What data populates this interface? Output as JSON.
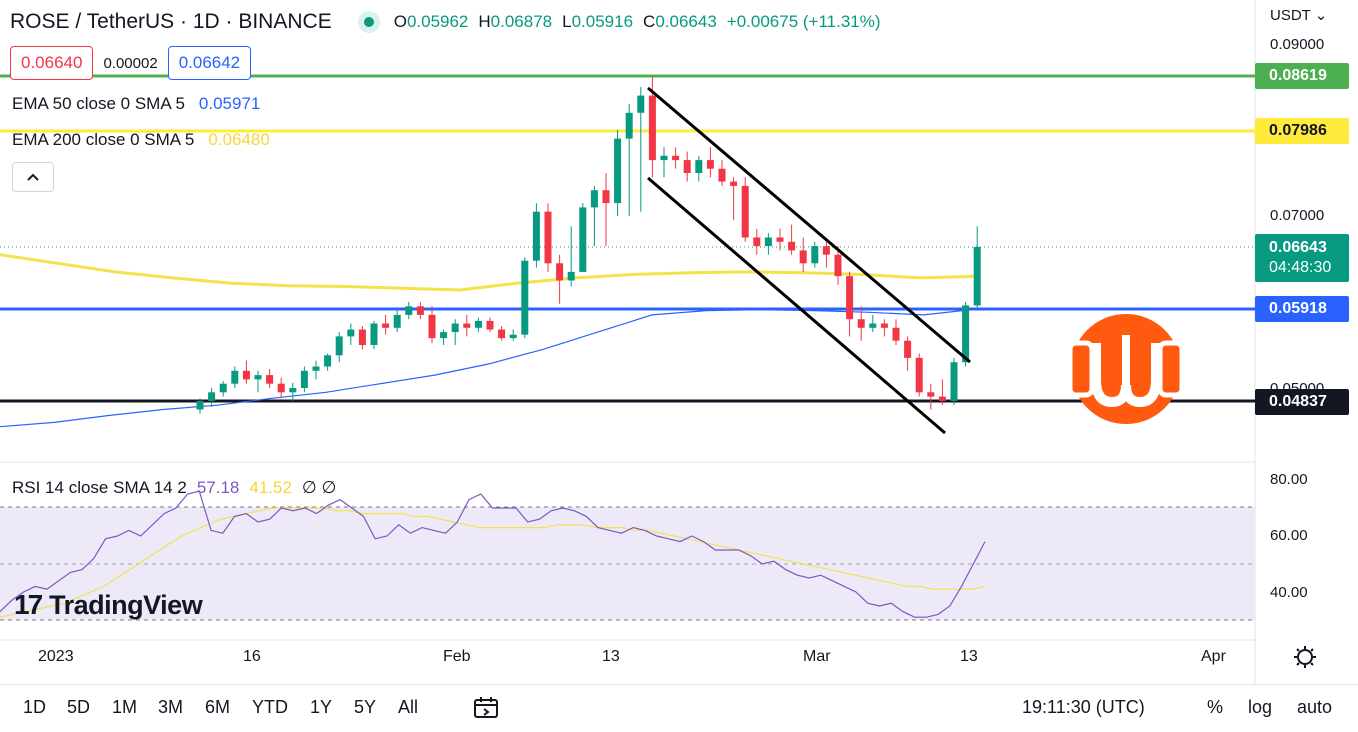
{
  "header": {
    "symbol": "ROSE / TetherUS · 1D · BINANCE",
    "ohlc": [
      {
        "k": "O",
        "v": "0.05962"
      },
      {
        "k": "H",
        "v": "0.06878"
      },
      {
        "k": "L",
        "v": "0.05916"
      },
      {
        "k": "C",
        "v": "0.06643"
      }
    ],
    "change": "+0.00675 (+11.31%)",
    "accent_color": "#089981"
  },
  "quote": {
    "bid": "0.06640",
    "spread": "0.00002",
    "ask": "0.06642"
  },
  "indicators": [
    {
      "label": "EMA 50 close 0 SMA 5",
      "value": "0.05971",
      "color": "#2962ff"
    },
    {
      "label": "EMA 200 close 0 SMA 5",
      "value": "0.06480",
      "color": "#f5d63d"
    }
  ],
  "collapse_icon": "chevron-up-icon",
  "currency": "USDT",
  "price_axis": [
    "0.09000",
    "0.07000",
    "0.05000"
  ],
  "price_tags": [
    {
      "value": "0.08619",
      "bg": "#4caf50",
      "fg": "#ffffff"
    },
    {
      "value": "0.07986",
      "bg": "#ffeb3b",
      "fg": "#131722"
    },
    {
      "value": "0.06643",
      "bg": "#089981",
      "fg": "#ffffff",
      "sub": "04:48:30"
    },
    {
      "value": "0.05918",
      "bg": "#2962ff",
      "fg": "#ffffff"
    },
    {
      "value": "0.04837",
      "bg": "#131722",
      "fg": "#ffffff"
    }
  ],
  "rsi": {
    "label": "RSI 14 close SMA 14 2",
    "value": "57.18",
    "sma_value": "41.52",
    "extra": "∅ ∅",
    "axis": [
      "80.00",
      "60.00",
      "40.00"
    ]
  },
  "logo": {
    "mark": "17",
    "word": "TradingView"
  },
  "dates": [
    "2023",
    "16",
    "Feb",
    "13",
    "Mar",
    "13",
    "Apr"
  ],
  "toolbar": {
    "timeframes": [
      "1D",
      "5D",
      "1M",
      "3M",
      "6M",
      "YTD",
      "1Y",
      "5Y",
      "All"
    ],
    "time": "19:11:30 (UTC)",
    "percent": "%",
    "log": "log",
    "auto": "auto"
  },
  "chart_data": {
    "type": "candlestick",
    "candles": [
      [
        0.0475,
        0.0488,
        0.047,
        0.0485
      ],
      [
        0.0485,
        0.05,
        0.0478,
        0.0495
      ],
      [
        0.0495,
        0.0508,
        0.049,
        0.0505
      ],
      [
        0.0505,
        0.0525,
        0.05,
        0.052
      ],
      [
        0.052,
        0.0532,
        0.0505,
        0.051
      ],
      [
        0.051,
        0.052,
        0.0495,
        0.0515
      ],
      [
        0.0515,
        0.0522,
        0.05,
        0.0505
      ],
      [
        0.0505,
        0.0512,
        0.0488,
        0.0495
      ],
      [
        0.0495,
        0.0506,
        0.0485,
        0.05
      ],
      [
        0.05,
        0.0525,
        0.0495,
        0.052
      ],
      [
        0.052,
        0.0532,
        0.051,
        0.0525
      ],
      [
        0.0525,
        0.054,
        0.052,
        0.0538
      ],
      [
        0.0538,
        0.0565,
        0.053,
        0.056
      ],
      [
        0.056,
        0.0575,
        0.055,
        0.0568
      ],
      [
        0.0568,
        0.0572,
        0.0545,
        0.055
      ],
      [
        0.055,
        0.0578,
        0.0545,
        0.0575
      ],
      [
        0.0575,
        0.0585,
        0.0562,
        0.057
      ],
      [
        0.057,
        0.059,
        0.0565,
        0.0585
      ],
      [
        0.0585,
        0.06,
        0.058,
        0.0595
      ],
      [
        0.0595,
        0.06,
        0.058,
        0.0585
      ],
      [
        0.0585,
        0.0595,
        0.0552,
        0.0558
      ],
      [
        0.0558,
        0.0568,
        0.055,
        0.0565
      ],
      [
        0.0565,
        0.058,
        0.055,
        0.0575
      ],
      [
        0.0575,
        0.0585,
        0.056,
        0.057
      ],
      [
        0.057,
        0.0582,
        0.0565,
        0.0578
      ],
      [
        0.0578,
        0.0582,
        0.0565,
        0.0568
      ],
      [
        0.0568,
        0.0572,
        0.0555,
        0.0558
      ],
      [
        0.0558,
        0.0568,
        0.0555,
        0.0562
      ],
      [
        0.0562,
        0.0652,
        0.0558,
        0.0648
      ],
      [
        0.0648,
        0.0715,
        0.064,
        0.0705
      ],
      [
        0.0705,
        0.0715,
        0.0635,
        0.0645
      ],
      [
        0.0645,
        0.0655,
        0.0598,
        0.0625
      ],
      [
        0.0625,
        0.0688,
        0.0618,
        0.0635
      ],
      [
        0.0635,
        0.0715,
        0.0635,
        0.071
      ],
      [
        0.071,
        0.0735,
        0.0665,
        0.073
      ],
      [
        0.073,
        0.075,
        0.0665,
        0.0715
      ],
      [
        0.0715,
        0.08,
        0.07,
        0.079
      ],
      [
        0.079,
        0.083,
        0.07,
        0.082
      ],
      [
        0.082,
        0.085,
        0.0705,
        0.084
      ],
      [
        0.084,
        0.0862,
        0.0745,
        0.0765
      ],
      [
        0.0765,
        0.078,
        0.0745,
        0.077
      ],
      [
        0.077,
        0.078,
        0.0755,
        0.0765
      ],
      [
        0.0765,
        0.0775,
        0.074,
        0.075
      ],
      [
        0.075,
        0.077,
        0.074,
        0.0765
      ],
      [
        0.0765,
        0.078,
        0.0745,
        0.0755
      ],
      [
        0.0755,
        0.0765,
        0.0735,
        0.074
      ],
      [
        0.074,
        0.0745,
        0.0695,
        0.0735
      ],
      [
        0.0735,
        0.0745,
        0.067,
        0.0675
      ],
      [
        0.0675,
        0.0685,
        0.0655,
        0.0665
      ],
      [
        0.0665,
        0.068,
        0.0655,
        0.0675
      ],
      [
        0.0675,
        0.0685,
        0.066,
        0.067
      ],
      [
        0.067,
        0.069,
        0.0655,
        0.066
      ],
      [
        0.066,
        0.0675,
        0.0635,
        0.0645
      ],
      [
        0.0645,
        0.067,
        0.064,
        0.0665
      ],
      [
        0.0665,
        0.067,
        0.064,
        0.0655
      ],
      [
        0.0655,
        0.0665,
        0.062,
        0.063
      ],
      [
        0.063,
        0.0635,
        0.056,
        0.058
      ],
      [
        0.058,
        0.0595,
        0.0555,
        0.057
      ],
      [
        0.057,
        0.0585,
        0.0565,
        0.0575
      ],
      [
        0.0575,
        0.058,
        0.056,
        0.057
      ],
      [
        0.057,
        0.058,
        0.055,
        0.0555
      ],
      [
        0.0555,
        0.056,
        0.052,
        0.0535
      ],
      [
        0.0535,
        0.054,
        0.049,
        0.0495
      ],
      [
        0.0495,
        0.0505,
        0.0475,
        0.049
      ],
      [
        0.049,
        0.051,
        0.048,
        0.0485
      ],
      [
        0.0485,
        0.0535,
        0.048,
        0.053
      ],
      [
        0.053,
        0.06,
        0.0525,
        0.0596
      ],
      [
        0.0596,
        0.0688,
        0.0592,
        0.0664
      ]
    ],
    "ema50": [
      0.0455,
      0.046,
      0.0468,
      0.0475,
      0.048,
      0.0488,
      0.0495,
      0.0505,
      0.0515,
      0.0528,
      0.0545,
      0.0565,
      0.0585,
      0.059,
      0.0591,
      0.059,
      0.0588,
      0.0585,
      0.0592
    ],
    "ema200": [
      0.0655,
      0.0645,
      0.0635,
      0.0628,
      0.0622,
      0.0619,
      0.0618,
      0.0616,
      0.0614,
      0.0622,
      0.0628,
      0.0632,
      0.0634,
      0.0635,
      0.0634,
      0.0632,
      0.0628,
      0.063
    ],
    "channel": {
      "upper": [
        [
          0.084,
          37
        ],
        [
          0.0585,
          62
        ]
      ],
      "lower": [
        [
          0.0765,
          37
        ],
        [
          0.047,
          60
        ]
      ]
    },
    "levels": [
      0.08619,
      0.07986,
      0.05918,
      0.04837
    ],
    "rsi_values": [
      33,
      37,
      40,
      42,
      41,
      44,
      47,
      48,
      52,
      59,
      60,
      62,
      60,
      64,
      68,
      70,
      75,
      76,
      62,
      61,
      67,
      68,
      65,
      66,
      70,
      69,
      70,
      68,
      71,
      73,
      70,
      67,
      59,
      60,
      64,
      61,
      63,
      62,
      61,
      65,
      73,
      75,
      70,
      70,
      70,
      65,
      66,
      69,
      70,
      69,
      67,
      63,
      62,
      61,
      63,
      62,
      60,
      59,
      58,
      60,
      58,
      55,
      55,
      55,
      53,
      50,
      51,
      48,
      46,
      45,
      46,
      44,
      42,
      40,
      36,
      35,
      36,
      33,
      31,
      31,
      32,
      35,
      42,
      50,
      58
    ],
    "rsi_sma": [
      31,
      32,
      33,
      34,
      35,
      36,
      38,
      40,
      42,
      45,
      48,
      51,
      54,
      57,
      60,
      62,
      64,
      66,
      67,
      68,
      69,
      70,
      70,
      70,
      70,
      70,
      69,
      69,
      68,
      68,
      68,
      68,
      67,
      67,
      66,
      65,
      64,
      63,
      63,
      63,
      63,
      63,
      63,
      64,
      64,
      64,
      63,
      63,
      63,
      62,
      62,
      61,
      60,
      59,
      58,
      57,
      56,
      55,
      54,
      53,
      52,
      51,
      50,
      49,
      48,
      47,
      46,
      45,
      44,
      43,
      42,
      42,
      41,
      41,
      41,
      41,
      42
    ],
    "rsi_bands": [
      70,
      50,
      30
    ]
  }
}
